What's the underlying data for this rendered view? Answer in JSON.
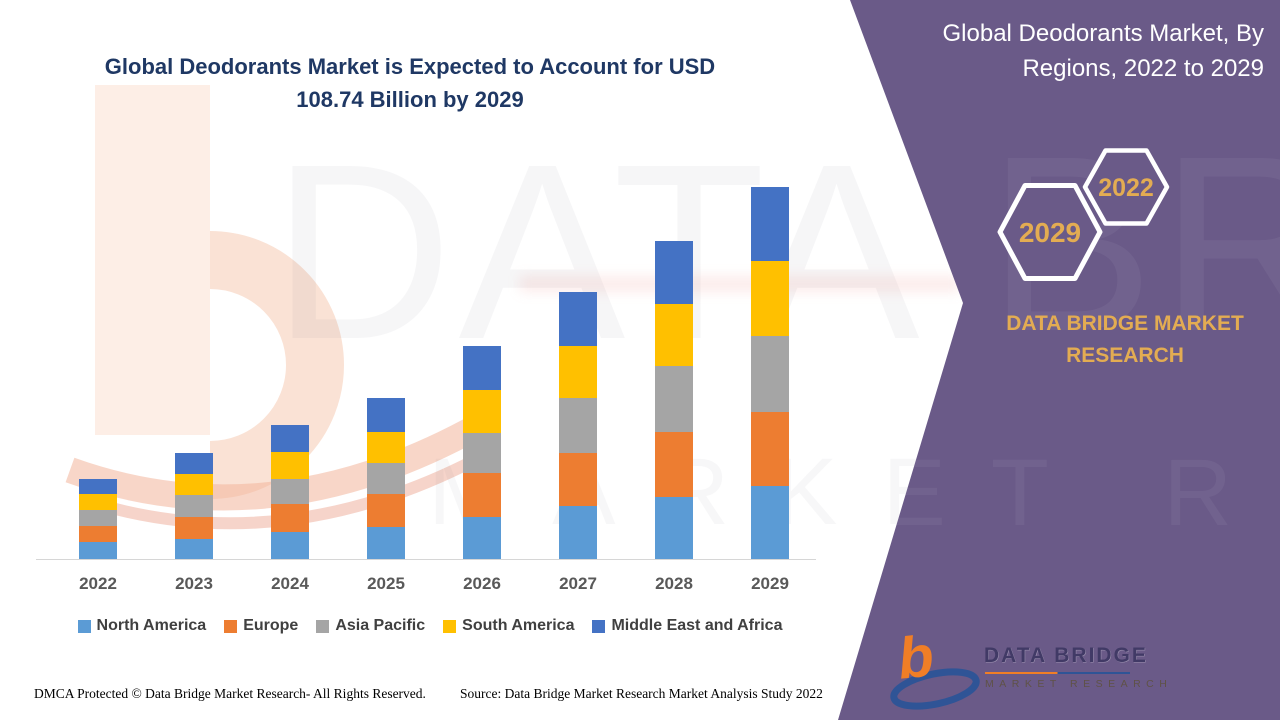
{
  "banner": {
    "title_line1": "Global Deodorants Market, By",
    "title_line2": "Regions, 2022 to 2029",
    "hex_large_label": "2029",
    "hex_small_label": "2022",
    "brand_line1": "DATA BRIDGE MARKET",
    "brand_line2": "RESEARCH"
  },
  "headline": {
    "line1": "Global Deodorants Market is Expected to Account for USD",
    "line2": "108.74  Billion by 2029"
  },
  "chart_data": {
    "type": "bar",
    "stacked": true,
    "unit": "USD Billion",
    "title": "Global Deodorants Market, By Regions, 2022 to 2029",
    "categories": [
      "2022",
      "2023",
      "2024",
      "2025",
      "2026",
      "2027",
      "2028",
      "2029"
    ],
    "series": [
      {
        "name": "North America",
        "color": "#5B9BD5",
        "values": [
          5.0,
          5.8,
          7.8,
          9.4,
          12.2,
          15.4,
          18.0,
          21.4
        ]
      },
      {
        "name": "Europe",
        "color": "#ED7D31",
        "values": [
          4.7,
          6.6,
          8.2,
          9.5,
          12.9,
          15.6,
          19.0,
          21.6
        ]
      },
      {
        "name": "Asia Pacific",
        "color": "#A5A5A5",
        "values": [
          4.7,
          6.3,
          7.4,
          9.2,
          11.7,
          16.1,
          19.5,
          22.2
        ]
      },
      {
        "name": "South America",
        "color": "#FFC000",
        "values": [
          4.6,
          6.1,
          7.8,
          9.0,
          12.7,
          15.3,
          18.2,
          21.8
        ]
      },
      {
        "name": "Middle East and Africa",
        "color": "#4472C4",
        "values": [
          4.4,
          6.2,
          8.0,
          9.9,
          12.9,
          15.7,
          18.4,
          21.74
        ]
      }
    ],
    "annotation": "2029 total = USD 108.74 Billion",
    "xlabel": "",
    "ylabel": "",
    "ylim": [
      0,
      115
    ],
    "grid": false,
    "y_axis_shown": false,
    "legend_position": "bottom"
  },
  "watermark": {
    "big": "DATA BRIDGE",
    "spaced": "MARKET RESEARCH"
  },
  "logo": {
    "glyph": "b",
    "name": "DATA BRIDGE",
    "subtitle": "MARKET RESEARCH"
  },
  "footer": {
    "dmca": "DMCA Protected © Data Bridge Market Research- All Rights Reserved.",
    "source": "Source: Data Bridge Market Research Market Analysis Study 2022"
  },
  "colors": {
    "purple_band": "#6A5A88",
    "gold": "#E3AC52",
    "headline_blue": "#1F3864",
    "axis_label": "#595959",
    "legend_text": "#404040",
    "axis_line": "#D6D6D6"
  }
}
